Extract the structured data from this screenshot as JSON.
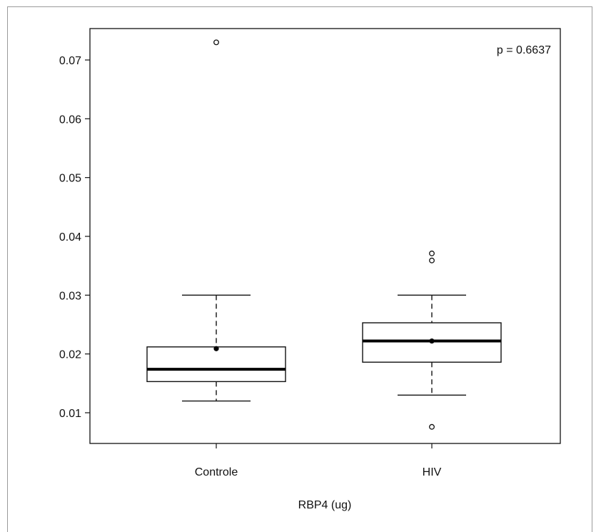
{
  "chart_data": {
    "type": "boxplot",
    "xlabel": "RBP4 (ug)",
    "ylabel": "",
    "ylim": [
      0.005,
      0.075
    ],
    "yticks": [
      "0.01",
      "0.02",
      "0.03",
      "0.04",
      "0.05",
      "0.06",
      "0.07"
    ],
    "annotation": "p = 0.6637",
    "annotation_position": "top-right",
    "grid": false,
    "categories": [
      "Controle",
      "HIV"
    ],
    "groups": [
      {
        "name": "Controle",
        "whisker_low": 0.012,
        "q1": 0.0153,
        "median": 0.0174,
        "q3": 0.0212,
        "whisker_high": 0.03,
        "mean": 0.0209,
        "outliers": [
          0.073
        ]
      },
      {
        "name": "HIV",
        "whisker_low": 0.013,
        "q1": 0.0186,
        "median": 0.0222,
        "q3": 0.0253,
        "whisker_high": 0.03,
        "mean": 0.0222,
        "outliers": [
          0.0076,
          0.0359,
          0.0371
        ]
      }
    ]
  }
}
